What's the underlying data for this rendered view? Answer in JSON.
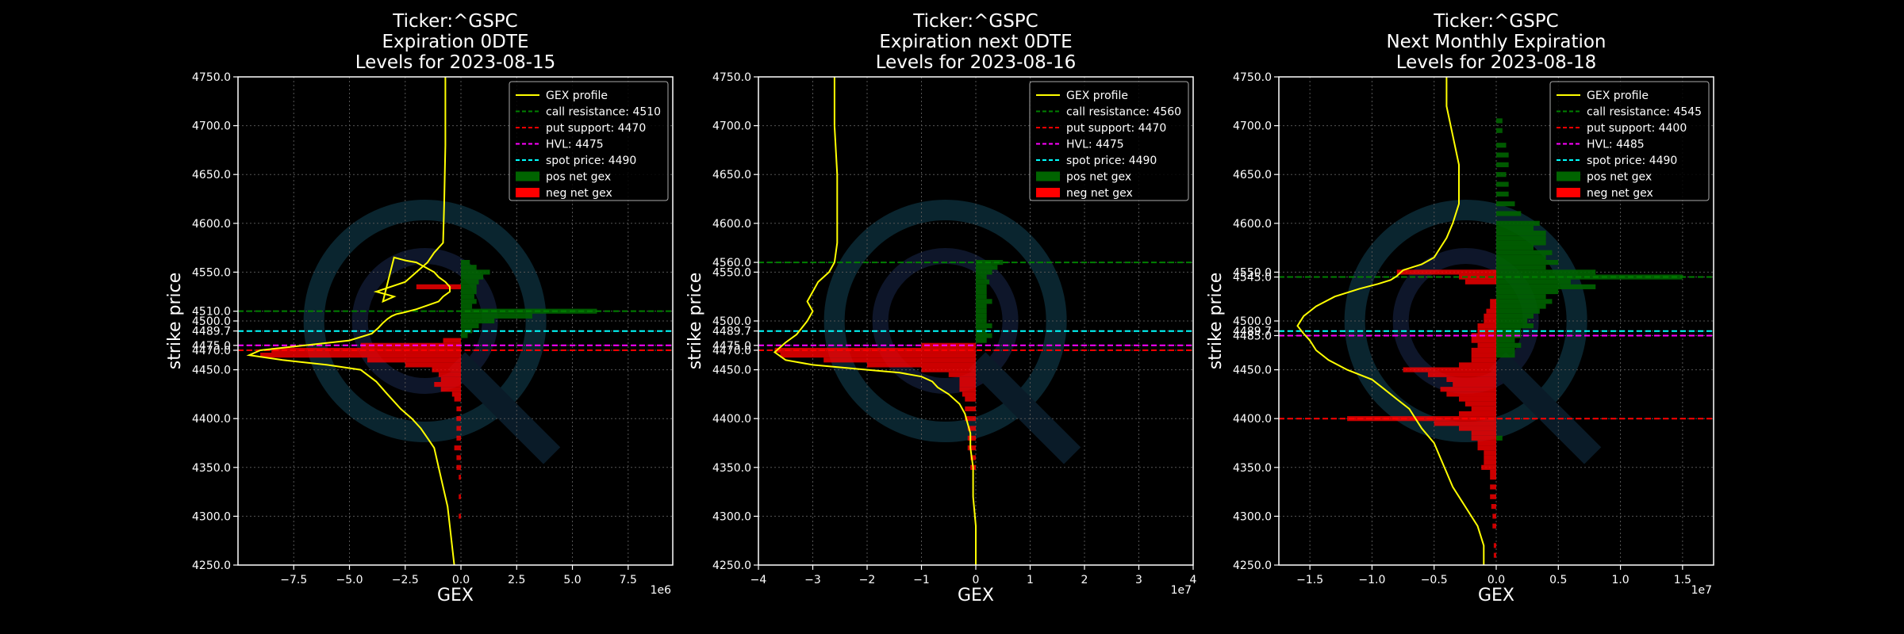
{
  "colors": {
    "background": "#000000",
    "gex_profile": "#ffff00",
    "call_resistance": "#008000",
    "put_support": "#ff0000",
    "hvl": "#ff00ff",
    "spot_price": "#00ffff",
    "pos_net_gex": "#006400",
    "neg_net_gex": "#ff0000",
    "grid": "#555555",
    "watermark": "#1e5a78"
  },
  "chart_data": [
    {
      "type": "bar",
      "title_lines": [
        "Ticker:^GSPC",
        "Expiration 0DTE",
        "Levels for 2023-08-15"
      ],
      "xlabel": "GEX",
      "ylabel": "strike price",
      "x_exponent_label": "1e6",
      "xlim": [
        -10,
        9.5
      ],
      "x_scale": 1000000,
      "ylim": [
        4250,
        4750
      ],
      "x_ticks": [
        -7.5,
        -5.0,
        -2.5,
        0.0,
        2.5,
        5.0,
        7.5
      ],
      "x_tick_labels": [
        "−7.5",
        "−5.0",
        "−2.5",
        "0.0",
        "2.5",
        "5.0",
        "7.5"
      ],
      "y_ticks": [
        4250,
        4300,
        4350,
        4400,
        4450,
        4470,
        4475,
        4489.7,
        4500,
        4510,
        4550,
        4600,
        4650,
        4700,
        4750
      ],
      "y_tick_labels": [
        "4250.0",
        "4300.0",
        "4350.0",
        "4400.0",
        "4450.0",
        "4470.0",
        "4475.0",
        "4489.7",
        "4500.0",
        "4510.0",
        "4550.0",
        "4600.0",
        "4650.0",
        "4700.0",
        "4750.0"
      ],
      "grid": true,
      "legend_position": "top-right",
      "legend": [
        "GEX profile",
        "call resistance: 4510",
        "put support: 4470",
        "HVL: 4475",
        "spot price: 4490",
        "pos net gex",
        "neg net gex"
      ],
      "levels": {
        "call_resistance": 4510,
        "put_support": 4470,
        "hvl": 4475,
        "spot_price": 4489.7
      },
      "bar_height": 5,
      "pos_bars": [
        [
          4560,
          0.4
        ],
        [
          4555,
          0.7
        ],
        [
          4550,
          1.3
        ],
        [
          4545,
          1.0
        ],
        [
          4540,
          0.8
        ],
        [
          4535,
          0.7
        ],
        [
          4530,
          0.7
        ],
        [
          4525,
          0.6
        ],
        [
          4520,
          0.7
        ],
        [
          4515,
          0.5
        ],
        [
          4510,
          6.1
        ],
        [
          4505,
          3.2
        ],
        [
          4500,
          1.5
        ],
        [
          4495,
          0.8
        ],
        [
          4490,
          0.5
        ],
        [
          4485,
          0.3
        ]
      ],
      "neg_bars": [
        [
          4535,
          -2.0
        ],
        [
          4480,
          -0.8
        ],
        [
          4475,
          -4.5
        ],
        [
          4470,
          -8.5
        ],
        [
          4465,
          -9.0
        ],
        [
          4460,
          -4.2
        ],
        [
          4455,
          -2.5
        ],
        [
          4450,
          -1.3
        ],
        [
          4445,
          -1.0
        ],
        [
          4440,
          -0.9
        ],
        [
          4435,
          -1.2
        ],
        [
          4430,
          -0.9
        ],
        [
          4425,
          -0.4
        ],
        [
          4420,
          -0.3
        ],
        [
          4410,
          -0.2
        ],
        [
          4400,
          -0.2
        ],
        [
          4390,
          -0.2
        ],
        [
          4380,
          -0.2
        ],
        [
          4370,
          -0.3
        ],
        [
          4360,
          -0.2
        ],
        [
          4350,
          -0.2
        ],
        [
          4340,
          -0.1
        ],
        [
          4320,
          -0.1
        ],
        [
          4300,
          -0.1
        ]
      ],
      "profile": {
        "x": [
          -0.3,
          -0.4,
          -0.5,
          -0.6,
          -0.8,
          -1.0,
          -1.2,
          -1.5,
          -1.8,
          -2.2,
          -2.7,
          -3.3,
          -3.8,
          -4.5,
          -6.0,
          -8.0,
          -9.5,
          -9.0,
          -7.0,
          -5.0,
          -4.0,
          -3.7,
          -3.5,
          -3.3,
          -3.1,
          -2.9,
          -2.5,
          -2.0,
          -1.5,
          -1.0,
          -0.8,
          -0.5,
          -0.5,
          -0.7,
          -1.0,
          -1.2,
          -1.6,
          -2.0,
          -2.5,
          -3.0,
          -3.5,
          -3.0,
          -3.8,
          -2.5,
          -2.0,
          -1.5,
          -1.2,
          -0.8,
          -0.75,
          -0.7,
          -0.7
        ],
        "y": [
          4250,
          4270,
          4290,
          4310,
          4330,
          4350,
          4370,
          4380,
          4390,
          4400,
          4410,
          4425,
          4438,
          4450,
          4455,
          4460,
          4465,
          4470,
          4475,
          4480,
          4487,
          4493,
          4498,
          4502,
          4505,
          4507,
          4509,
          4512,
          4516,
          4520,
          4525,
          4530,
          4535,
          4540,
          4545,
          4550,
          4555,
          4560,
          4562,
          4565,
          4520,
          4525,
          4530,
          4540,
          4550,
          4560,
          4570,
          4580,
          4620,
          4680,
          4750
        ]
      }
    },
    {
      "type": "bar",
      "title_lines": [
        "Ticker:^GSPC",
        "Expiration next 0DTE",
        "Levels for 2023-08-16"
      ],
      "xlabel": "GEX",
      "ylabel": "strike price",
      "x_exponent_label": "1e7",
      "xlim": [
        -4,
        4
      ],
      "x_scale": 10000000,
      "ylim": [
        4250,
        4750
      ],
      "x_ticks": [
        -4,
        -3,
        -2,
        -1,
        0,
        1,
        2,
        3,
        4
      ],
      "x_tick_labels": [
        "−4",
        "−3",
        "−2",
        "−1",
        "0",
        "1",
        "2",
        "3",
        "4"
      ],
      "y_ticks": [
        4250,
        4300,
        4350,
        4400,
        4450,
        4470,
        4475,
        4489.7,
        4500,
        4550,
        4560,
        4600,
        4650,
        4700,
        4750
      ],
      "y_tick_labels": [
        "4250.0",
        "4300.0",
        "4350.0",
        "4400.0",
        "4450.0",
        "4470.0",
        "4475.0",
        "4489.7",
        "4500.0",
        "4550.0",
        "4560.0",
        "4600.0",
        "4650.0",
        "4700.0",
        "4750.0"
      ],
      "grid": true,
      "legend_position": "top-right",
      "legend": [
        "GEX profile",
        "call resistance: 4560",
        "put support: 4470",
        "HVL: 4475",
        "spot price: 4490",
        "pos net gex",
        "neg net gex"
      ],
      "levels": {
        "call_resistance": 4560,
        "put_support": 4470,
        "hvl": 4475,
        "spot_price": 4489.7
      },
      "bar_height": 5,
      "pos_bars": [
        [
          4560,
          0.5
        ],
        [
          4555,
          0.4
        ],
        [
          4550,
          0.3
        ],
        [
          4545,
          0.2
        ],
        [
          4540,
          0.25
        ],
        [
          4535,
          0.2
        ],
        [
          4530,
          0.2
        ],
        [
          4525,
          0.2
        ],
        [
          4520,
          0.3
        ],
        [
          4515,
          0.2
        ],
        [
          4510,
          0.2
        ],
        [
          4505,
          0.2
        ],
        [
          4500,
          0.2
        ],
        [
          4495,
          0.3
        ],
        [
          4490,
          0.2
        ],
        [
          4485,
          0.3
        ],
        [
          4480,
          0.2
        ]
      ],
      "neg_bars": [
        [
          4475,
          -1.0
        ],
        [
          4470,
          -3.7
        ],
        [
          4465,
          -3.6
        ],
        [
          4460,
          -2.8
        ],
        [
          4455,
          -2.0
        ],
        [
          4450,
          -1.0
        ],
        [
          4445,
          -0.5
        ],
        [
          4440,
          -0.3
        ],
        [
          4435,
          -0.3
        ],
        [
          4430,
          -0.3
        ],
        [
          4425,
          -0.25
        ],
        [
          4420,
          -0.2
        ],
        [
          4410,
          -0.2
        ],
        [
          4400,
          -0.2
        ],
        [
          4390,
          -0.15
        ],
        [
          4380,
          -0.15
        ],
        [
          4370,
          -0.15
        ],
        [
          4360,
          -0.1
        ],
        [
          4350,
          -0.1
        ]
      ],
      "profile": {
        "x": [
          0.0,
          0.0,
          -0.05,
          -0.05,
          -0.1,
          -0.1,
          -0.15,
          -0.2,
          -0.3,
          -0.5,
          -0.7,
          -0.8,
          -1.0,
          -1.4,
          -2.0,
          -3.0,
          -3.5,
          -3.7,
          -3.5,
          -3.3,
          -3.2,
          -3.1,
          -3.0,
          -3.1,
          -3.0,
          -2.9,
          -2.7,
          -2.6,
          -2.55,
          -2.55,
          -2.6,
          -2.6
        ],
        "y": [
          4250,
          4290,
          4320,
          4350,
          4370,
          4385,
          4395,
          4405,
          4415,
          4425,
          4432,
          4438,
          4443,
          4447,
          4450,
          4455,
          4460,
          4468,
          4478,
          4486,
          4493,
          4500,
          4510,
          4520,
          4530,
          4540,
          4550,
          4560,
          4580,
          4650,
          4700,
          4750
        ]
      }
    },
    {
      "type": "bar",
      "title_lines": [
        "Ticker:^GSPC",
        "Next Monthly Expiration",
        "Levels for 2023-08-18"
      ],
      "xlabel": "GEX",
      "ylabel": "strike price",
      "x_exponent_label": "1e7",
      "xlim": [
        -1.75,
        1.75
      ],
      "x_scale": 10000000,
      "ylim": [
        4250,
        4750
      ],
      "x_ticks": [
        -1.5,
        -1.0,
        -0.5,
        0.0,
        0.5,
        1.0,
        1.5
      ],
      "x_tick_labels": [
        "−1.5",
        "−1.0",
        "−0.5",
        "0.0",
        "0.5",
        "1.0",
        "1.5"
      ],
      "y_ticks": [
        4250,
        4300,
        4350,
        4400,
        4450,
        4485,
        4489.7,
        4500,
        4545,
        4550,
        4600,
        4650,
        4700,
        4750
      ],
      "y_tick_labels": [
        "4250.0",
        "4300.0",
        "4350.0",
        "4400.0",
        "4450.0",
        "4485.0",
        "4489.7",
        "4500.0",
        "4545.0",
        "4550.0",
        "4600.0",
        "4650.0",
        "4700.0",
        "4750.0"
      ],
      "grid": true,
      "legend_position": "top-right",
      "legend": [
        "GEX profile",
        "call resistance: 4545",
        "put support: 4400",
        "HVL: 4485",
        "spot price: 4490",
        "pos net gex",
        "neg net gex"
      ],
      "levels": {
        "call_resistance": 4545,
        "put_support": 4400,
        "hvl": 4485,
        "spot_price": 4489.7
      },
      "bar_height": 5,
      "pos_bars": [
        [
          4705,
          0.05
        ],
        [
          4695,
          0.05
        ],
        [
          4680,
          0.08
        ],
        [
          4670,
          0.1
        ],
        [
          4660,
          0.1
        ],
        [
          4650,
          0.08
        ],
        [
          4640,
          0.1
        ],
        [
          4630,
          0.1
        ],
        [
          4620,
          0.15
        ],
        [
          4610,
          0.2
        ],
        [
          4600,
          0.35
        ],
        [
          4595,
          0.3
        ],
        [
          4590,
          0.4
        ],
        [
          4585,
          0.4
        ],
        [
          4580,
          0.4
        ],
        [
          4575,
          0.3
        ],
        [
          4570,
          0.45
        ],
        [
          4565,
          0.4
        ],
        [
          4560,
          0.5
        ],
        [
          4555,
          0.4
        ],
        [
          4550,
          0.8
        ],
        [
          4545,
          1.5
        ],
        [
          4540,
          0.6
        ],
        [
          4535,
          0.8
        ],
        [
          4530,
          0.5
        ],
        [
          4525,
          0.4
        ],
        [
          4520,
          0.45
        ],
        [
          4515,
          0.4
        ],
        [
          4510,
          0.35
        ],
        [
          4505,
          0.3
        ],
        [
          4500,
          0.25
        ],
        [
          4495,
          0.3
        ],
        [
          4490,
          0.2
        ],
        [
          4485,
          0.2
        ],
        [
          4480,
          0.15
        ],
        [
          4475,
          0.2
        ],
        [
          4470,
          0.15
        ],
        [
          4465,
          0.15
        ],
        [
          4380,
          0.05
        ]
      ],
      "neg_bars": [
        [
          4550,
          -0.8
        ],
        [
          4545,
          -0.3
        ],
        [
          4540,
          -0.25
        ],
        [
          4520,
          -0.05
        ],
        [
          4515,
          -0.05
        ],
        [
          4510,
          -0.08
        ],
        [
          4505,
          -0.1
        ],
        [
          4500,
          -0.1
        ],
        [
          4495,
          -0.15
        ],
        [
          4490,
          -0.15
        ],
        [
          4485,
          -0.2
        ],
        [
          4480,
          -0.2
        ],
        [
          4475,
          -0.15
        ],
        [
          4470,
          -0.2
        ],
        [
          4465,
          -0.2
        ],
        [
          4460,
          -0.2
        ],
        [
          4455,
          -0.3
        ],
        [
          4450,
          -0.75
        ],
        [
          4445,
          -0.55
        ],
        [
          4440,
          -0.4
        ],
        [
          4435,
          -0.35
        ],
        [
          4430,
          -0.45
        ],
        [
          4425,
          -0.4
        ],
        [
          4420,
          -0.3
        ],
        [
          4415,
          -0.25
        ],
        [
          4410,
          -0.2
        ],
        [
          4405,
          -0.3
        ],
        [
          4400,
          -1.2
        ],
        [
          4395,
          -0.5
        ],
        [
          4390,
          -0.3
        ],
        [
          4385,
          -0.2
        ],
        [
          4380,
          -0.2
        ],
        [
          4375,
          -0.15
        ],
        [
          4370,
          -0.15
        ],
        [
          4365,
          -0.1
        ],
        [
          4360,
          -0.1
        ],
        [
          4355,
          -0.1
        ],
        [
          4350,
          -0.12
        ],
        [
          4345,
          -0.05
        ],
        [
          4340,
          -0.05
        ],
        [
          4330,
          -0.05
        ],
        [
          4320,
          -0.05
        ],
        [
          4310,
          -0.04
        ],
        [
          4300,
          -0.03
        ],
        [
          4290,
          -0.03
        ],
        [
          4270,
          -0.02
        ],
        [
          4260,
          -0.02
        ]
      ],
      "profile": {
        "x": [
          -0.1,
          -0.1,
          -0.15,
          -0.25,
          -0.35,
          -0.4,
          -0.45,
          -0.5,
          -0.6,
          -0.65,
          -0.7,
          -0.8,
          -0.9,
          -1.0,
          -1.2,
          -1.35,
          -1.45,
          -1.5,
          -1.55,
          -1.6,
          -1.55,
          -1.45,
          -1.3,
          -1.1,
          -0.95,
          -0.85,
          -0.8,
          -0.75,
          -0.6,
          -0.5,
          -0.45,
          -0.4,
          -0.35,
          -0.3,
          -0.3,
          -0.3,
          -0.35,
          -0.4,
          -0.4
        ],
        "y": [
          4250,
          4270,
          4290,
          4310,
          4330,
          4345,
          4360,
          4375,
          4390,
          4400,
          4410,
          4420,
          4430,
          4440,
          4450,
          4460,
          4470,
          4480,
          4487,
          4495,
          4505,
          4515,
          4525,
          4533,
          4538,
          4542,
          4546,
          4552,
          4558,
          4565,
          4575,
          4585,
          4600,
          4620,
          4640,
          4660,
          4690,
          4720,
          4750
        ]
      }
    }
  ]
}
